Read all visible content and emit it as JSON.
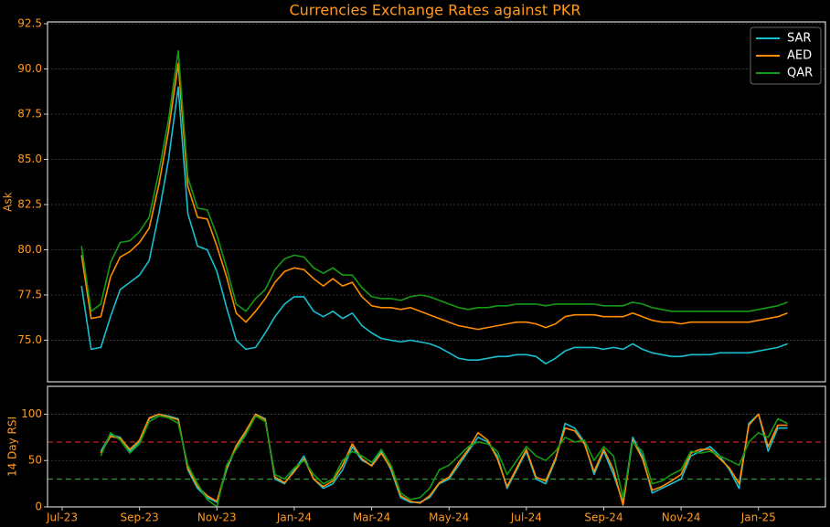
{
  "chart_data": [
    {
      "type": "line",
      "title": "Currencies Exchange Rates against PKR",
      "y_label": "Ask",
      "ylim": [
        72.7,
        92.6
      ],
      "yticks": [
        {
          "value": 75,
          "label": "75.0"
        },
        77.5,
        {
          "value": 80,
          "label": "80.0"
        },
        82.5,
        {
          "value": 85,
          "label": "85.0"
        },
        87.5,
        {
          "value": 90,
          "label": "90.0"
        },
        92.5
      ],
      "grid": true,
      "legend": "upper right",
      "series": [
        {
          "name": "SAR",
          "color": "#17bfcf",
          "values": [
            null,
            null,
            78.0,
            74.5,
            74.6,
            76.3,
            77.8,
            78.2,
            78.6,
            79.4,
            82.0,
            85.0,
            89.0,
            82.0,
            80.2,
            80.0,
            78.8,
            76.8,
            75.0,
            74.5,
            74.6,
            75.4,
            76.3,
            77.0,
            77.4,
            77.4,
            76.6,
            76.3,
            76.6,
            76.2,
            76.5,
            75.8,
            75.4,
            75.1,
            75.0,
            74.9,
            75.0,
            74.9,
            74.8,
            74.6,
            74.3,
            74.0,
            73.9,
            73.9,
            74.0,
            74.1,
            74.1,
            74.2,
            74.2,
            74.1,
            73.7,
            74.0,
            74.4,
            74.6,
            74.6,
            74.6,
            74.5,
            74.6,
            74.5,
            74.8,
            74.5,
            74.3,
            74.2,
            74.1,
            74.1,
            74.2,
            74.2,
            74.2,
            74.3,
            74.3,
            74.3,
            74.3,
            74.4,
            74.5,
            74.6,
            74.8
          ]
        },
        {
          "name": "AED",
          "color": "#ff8c00",
          "values": [
            null,
            null,
            79.7,
            76.2,
            76.3,
            78.5,
            79.6,
            79.9,
            80.4,
            81.2,
            83.6,
            86.6,
            90.3,
            83.5,
            81.8,
            81.7,
            80.2,
            78.5,
            76.5,
            76.0,
            76.6,
            77.3,
            78.2,
            78.8,
            79.0,
            78.9,
            78.4,
            78.0,
            78.4,
            78.0,
            78.2,
            77.4,
            76.9,
            76.8,
            76.8,
            76.7,
            76.8,
            76.6,
            76.4,
            76.2,
            76.0,
            75.8,
            75.7,
            75.6,
            75.7,
            75.8,
            75.9,
            76.0,
            76.0,
            75.9,
            75.7,
            75.9,
            76.3,
            76.4,
            76.4,
            76.4,
            76.3,
            76.3,
            76.3,
            76.5,
            76.3,
            76.1,
            76.0,
            76.0,
            75.9,
            76.0,
            76.0,
            76.0,
            76.0,
            76.0,
            76.0,
            76.0,
            76.1,
            76.2,
            76.3,
            76.5
          ]
        },
        {
          "name": "QAR",
          "color": "#159a15",
          "values": [
            null,
            null,
            80.2,
            76.6,
            77.0,
            79.3,
            80.4,
            80.5,
            81.0,
            81.8,
            84.3,
            87.2,
            91.0,
            84.0,
            82.3,
            82.2,
            80.8,
            79.0,
            77.0,
            76.6,
            77.3,
            77.8,
            78.9,
            79.5,
            79.7,
            79.6,
            79.0,
            78.7,
            79.0,
            78.6,
            78.6,
            77.9,
            77.4,
            77.3,
            77.3,
            77.2,
            77.4,
            77.5,
            77.4,
            77.2,
            77.0,
            76.8,
            76.7,
            76.8,
            76.8,
            76.9,
            76.9,
            77.0,
            77.0,
            77.0,
            76.9,
            77.0,
            77.0,
            77.0,
            77.0,
            77.0,
            76.9,
            76.9,
            76.9,
            77.1,
            77.0,
            76.8,
            76.7,
            76.6,
            76.6,
            76.6,
            76.6,
            76.6,
            76.6,
            76.6,
            76.6,
            76.6,
            76.7,
            76.8,
            76.9,
            77.1
          ]
        }
      ]
    },
    {
      "type": "line",
      "y_label": "14 Day RSI",
      "categories": [
        "Jul-23",
        null,
        null,
        null,
        null,
        null,
        null,
        null,
        "Sep-23",
        null,
        null,
        null,
        null,
        null,
        null,
        null,
        "Nov-23",
        null,
        null,
        null,
        null,
        null,
        null,
        null,
        "Jan-24",
        null,
        null,
        null,
        null,
        null,
        null,
        null,
        "Mar-24",
        null,
        null,
        null,
        null,
        null,
        null,
        null,
        "May-24",
        null,
        null,
        null,
        null,
        null,
        null,
        null,
        "Jul-24",
        null,
        null,
        null,
        null,
        null,
        null,
        null,
        "Sep-24",
        null,
        null,
        null,
        null,
        null,
        null,
        null,
        "Nov-24",
        null,
        null,
        null,
        null,
        null,
        null,
        null,
        "Jan-25",
        null,
        null,
        null
      ],
      "ylim": [
        0,
        130
      ],
      "yticks": [
        0,
        50,
        100
      ],
      "grid": true,
      "hlines": [
        {
          "value": 70,
          "color": "#d62728"
        },
        {
          "value": 30,
          "color": "#2ca02c"
        }
      ],
      "series": [
        {
          "name": "SAR",
          "color": "#17bfcf",
          "values": [
            null,
            null,
            null,
            null,
            60,
            78,
            75,
            60,
            70,
            95,
            100,
            98,
            95,
            40,
            20,
            10,
            5,
            40,
            65,
            80,
            100,
            95,
            30,
            25,
            40,
            55,
            30,
            20,
            25,
            40,
            65,
            50,
            45,
            60,
            40,
            10,
            5,
            5,
            10,
            25,
            30,
            45,
            60,
            75,
            70,
            55,
            20,
            40,
            60,
            30,
            25,
            50,
            90,
            85,
            70,
            35,
            60,
            35,
            5,
            75,
            55,
            15,
            20,
            25,
            30,
            55,
            60,
            65,
            55,
            40,
            20,
            90,
            100,
            60,
            85,
            85
          ]
        },
        {
          "name": "AED",
          "color": "#ff8c00",
          "values": [
            null,
            null,
            null,
            null,
            58,
            76,
            74,
            62,
            72,
            96,
            100,
            97,
            94,
            42,
            22,
            12,
            6,
            42,
            66,
            82,
            100,
            94,
            32,
            26,
            38,
            52,
            30,
            22,
            28,
            45,
            68,
            52,
            44,
            58,
            42,
            12,
            6,
            4,
            12,
            26,
            32,
            48,
            62,
            80,
            72,
            52,
            22,
            42,
            62,
            32,
            28,
            52,
            85,
            82,
            68,
            38,
            62,
            40,
            2,
            72,
            52,
            18,
            22,
            28,
            35,
            58,
            62,
            62,
            52,
            42,
            25,
            88,
            100,
            65,
            88,
            88
          ]
        },
        {
          "name": "QAR",
          "color": "#159a15",
          "values": [
            null,
            null,
            null,
            null,
            55,
            80,
            72,
            58,
            68,
            92,
            98,
            96,
            90,
            45,
            25,
            8,
            0,
            45,
            62,
            78,
            98,
            92,
            35,
            30,
            42,
            50,
            35,
            25,
            30,
            50,
            60,
            55,
            48,
            62,
            45,
            15,
            8,
            10,
            20,
            40,
            45,
            55,
            65,
            70,
            68,
            60,
            35,
            50,
            65,
            55,
            50,
            60,
            75,
            70,
            72,
            50,
            65,
            55,
            10,
            70,
            60,
            25,
            28,
            35,
            40,
            60,
            58,
            60,
            55,
            50,
            45,
            70,
            80,
            75,
            95,
            90
          ]
        }
      ]
    }
  ]
}
